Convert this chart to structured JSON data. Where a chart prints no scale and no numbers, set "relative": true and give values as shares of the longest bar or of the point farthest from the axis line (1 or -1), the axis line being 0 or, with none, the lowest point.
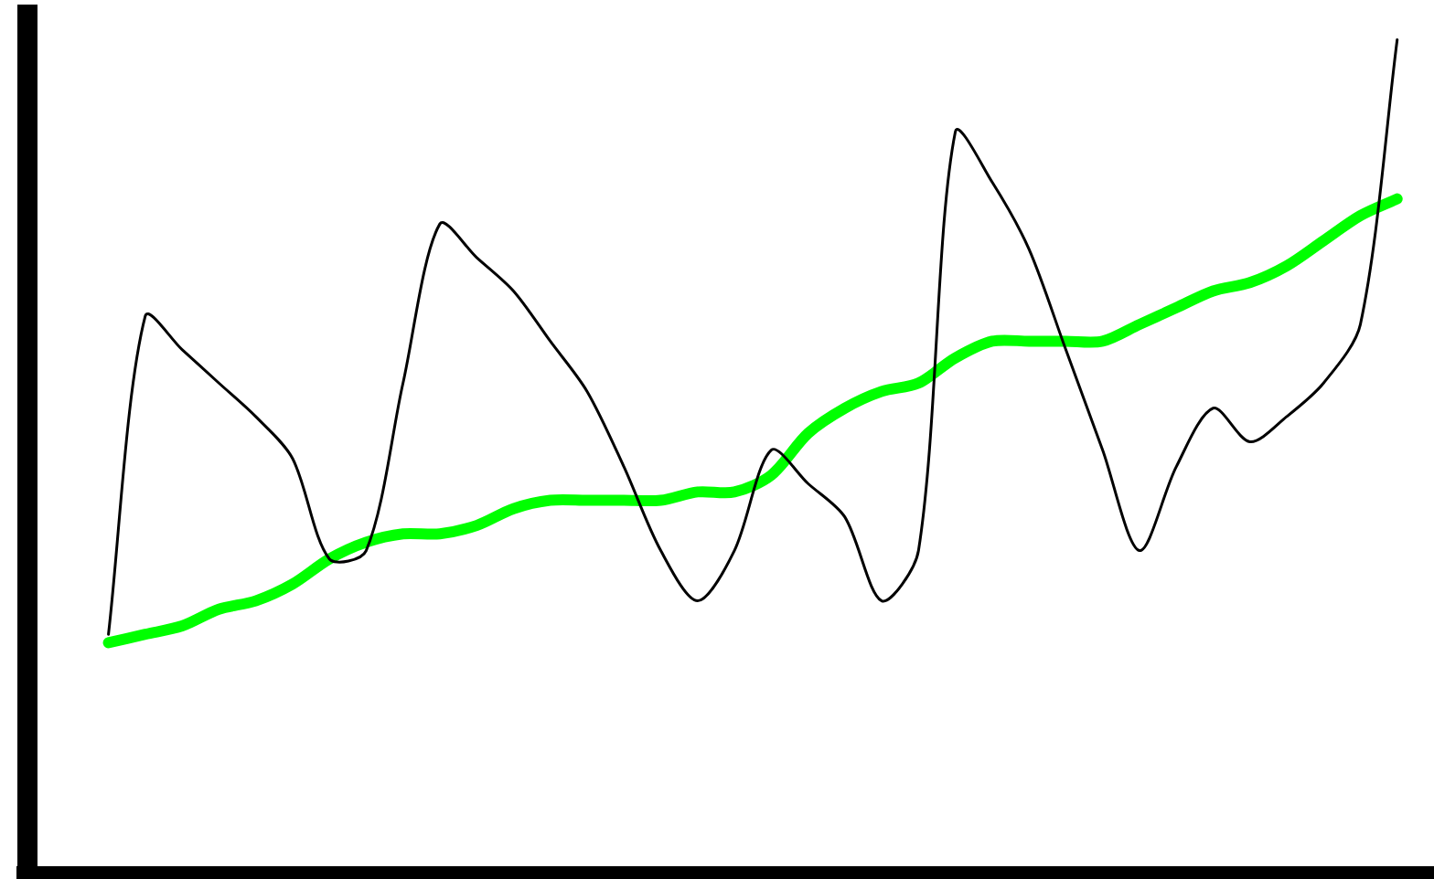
{
  "chart_data": {
    "type": "line",
    "relative": true,
    "categories": [
      null,
      null,
      null,
      null,
      null,
      null,
      null,
      null,
      null,
      null,
      null,
      null,
      null,
      null,
      null,
      null,
      null,
      null,
      null,
      null,
      null,
      null,
      null,
      null,
      null,
      null,
      null,
      null,
      null,
      null,
      null,
      null,
      null,
      null,
      null,
      null
    ],
    "series": [
      {
        "color": "#000000",
        "values": [
          0.29,
          0.67,
          0.63,
          0.59,
          0.55,
          0.5,
          0.38,
          0.39,
          0.59,
          0.78,
          0.74,
          0.7,
          0.64,
          0.58,
          0.49,
          0.39,
          0.33,
          0.39,
          0.51,
          0.47,
          0.43,
          0.33,
          0.39,
          0.89,
          0.83,
          0.75,
          0.63,
          0.51,
          0.39,
          0.49,
          0.56,
          0.52,
          0.55,
          0.59,
          0.66,
          1
        ]
      },
      {
        "color": "#00ff00",
        "values": [
          0.28,
          0.29,
          0.3,
          0.32,
          0.33,
          0.35,
          0.38,
          0.4,
          0.41,
          0.41,
          0.42,
          0.44,
          0.45,
          0.45,
          0.45,
          0.45,
          0.46,
          0.46,
          0.48,
          0.53,
          0.56,
          0.58,
          0.59,
          0.62,
          0.64,
          0.64,
          0.64,
          0.64,
          0.66,
          0.68,
          0.7,
          0.71,
          0.73,
          0.76,
          0.79,
          0.81
        ]
      }
    ]
  }
}
